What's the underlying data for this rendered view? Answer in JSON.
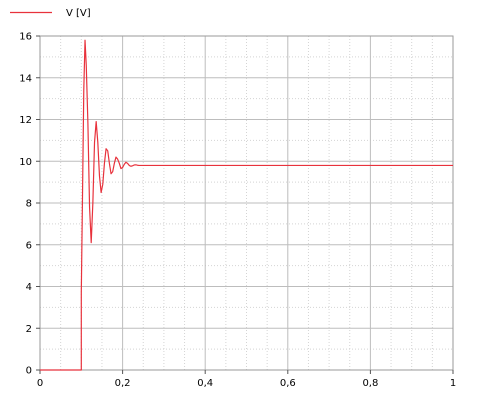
{
  "chart_data": {
    "type": "line",
    "title": "",
    "xlabel": "",
    "ylabel": "",
    "xlim": [
      0,
      1
    ],
    "ylim": [
      0,
      16
    ],
    "grid": true,
    "legend_position": "top-left",
    "x_tick_labels": [
      "0",
      "0,2",
      "0,4",
      "0,6",
      "0,8",
      "1"
    ],
    "y_tick_labels": [
      "0",
      "2",
      "4",
      "6",
      "8",
      "10",
      "12",
      "14",
      "16"
    ],
    "x_ticks": [
      0,
      0.2,
      0.4,
      0.6,
      0.8,
      1
    ],
    "y_ticks": [
      0,
      2,
      4,
      6,
      8,
      10,
      12,
      14,
      16
    ],
    "series": [
      {
        "name": "V [V]",
        "color": "#e8323c",
        "x": [
          0,
          0.1,
          0.1,
          0.103,
          0.106,
          0.109,
          0.112,
          0.116,
          0.12,
          0.124,
          0.128,
          0.132,
          0.136,
          0.14,
          0.144,
          0.148,
          0.152,
          0.156,
          0.16,
          0.164,
          0.168,
          0.172,
          0.176,
          0.18,
          0.184,
          0.188,
          0.192,
          0.196,
          0.2,
          0.204,
          0.208,
          0.212,
          0.216,
          0.22,
          0.224,
          0.228,
          0.232,
          0.236,
          0.24,
          0.25,
          0.3,
          0.4,
          0.5,
          0.6,
          0.7,
          0.8,
          0.9,
          1
        ],
        "y": [
          0,
          0,
          3.7,
          8.5,
          13.4,
          15.8,
          14.6,
          11.8,
          7.8,
          6.1,
          8.0,
          10.9,
          11.9,
          10.9,
          9.3,
          8.5,
          8.9,
          9.9,
          10.6,
          10.5,
          9.9,
          9.4,
          9.5,
          9.9,
          10.2,
          10.1,
          9.9,
          9.65,
          9.7,
          9.85,
          9.95,
          9.9,
          9.8,
          9.76,
          9.78,
          9.82,
          9.83,
          9.81,
          9.8,
          9.8,
          9.8,
          9.8,
          9.8,
          9.8,
          9.8,
          9.8,
          9.8,
          9.8
        ]
      }
    ]
  }
}
